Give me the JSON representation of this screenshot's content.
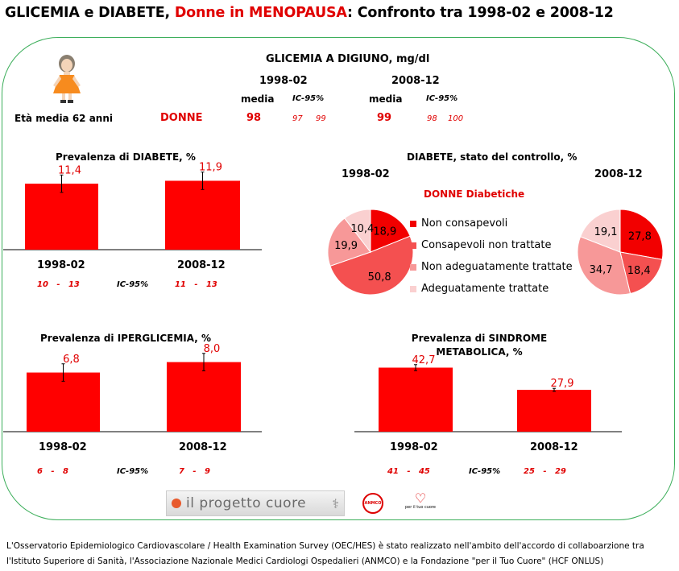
{
  "title": {
    "part1": "GLICEMIA e DIABETE, ",
    "part2": "Donne in MENOPAUSA",
    "part3": ": Confronto tra 1998-02 e 2008-12"
  },
  "glicemia": {
    "heading": "GLICEMIA A DIGIUNO, mg/dl",
    "period1": "1998-02",
    "period2": "2008-12",
    "media_label": "media",
    "ci_label": "IC-95%",
    "age_label": "Età media 62 anni",
    "group_label": "DONNE",
    "p1": {
      "media": "98",
      "ci_low": "97",
      "ci_high": "99"
    },
    "p2": {
      "media": "99",
      "ci_low": "98",
      "ci_high": "100"
    }
  },
  "colors": {
    "bar": "#ff0000",
    "accent": "#e00000",
    "frame": "#3cae5a"
  },
  "chart_data": [
    {
      "type": "bar",
      "title": "Prevalenza di DIABETE, %",
      "categories": [
        "1998-02",
        "2008-12"
      ],
      "values": [
        11.4,
        11.9
      ],
      "value_labels": [
        "11,4",
        "11,9"
      ],
      "errors": [
        1.5,
        1.5
      ],
      "ci_text": [
        "10   -   13",
        "11   -   13"
      ],
      "ci_label": "IC-95%",
      "ymax": 16
    },
    {
      "type": "pie",
      "title": "DIABETE, stato del controllo, %",
      "subtitle": "DONNE Diabetiche",
      "periods": [
        "1998-02",
        "2008-12"
      ],
      "legend": [
        "Non consapevoli",
        "Consapevoli non trattate",
        "Non adeguatamente trattate",
        "Adeguatamente trattate"
      ],
      "slice_colors": [
        "#f20000",
        "#f45050",
        "#f79898",
        "#fad0d0"
      ],
      "series": [
        {
          "name": "1998-02",
          "values": [
            18.9,
            50.8,
            19.9,
            10.4
          ],
          "labels": [
            "18,9",
            "50,8",
            "19,9",
            "10,4"
          ]
        },
        {
          "name": "2008-12",
          "values": [
            27.8,
            18.4,
            34.7,
            19.1
          ],
          "labels": [
            "27,8",
            "18,4",
            "34,7",
            "19,1"
          ]
        }
      ]
    },
    {
      "type": "bar",
      "title": "Prevalenza di IPERGLICEMIA, %",
      "categories": [
        "1998-02",
        "2008-12"
      ],
      "values": [
        6.8,
        8.0
      ],
      "value_labels": [
        "6,8",
        "8,0"
      ],
      "errors": [
        1,
        1
      ],
      "ci_text": [
        "6   -   8",
        "7   -   9"
      ],
      "ci_label": "IC-95%",
      "ymax": 10
    },
    {
      "type": "bar",
      "title": "Prevalenza di SINDROME",
      "title2": "METABOLICA, %",
      "categories": [
        "1998-02",
        "2008-12"
      ],
      "values": [
        42.7,
        27.9
      ],
      "value_labels": [
        "42,7",
        "27,9"
      ],
      "errors": [
        2,
        1
      ],
      "ci_text": [
        "41   -   45",
        "25   -   29"
      ],
      "ci_label": "IC-95%",
      "ymax": 58
    }
  ],
  "logos": {
    "progetto": "il progetto cuore",
    "anmco": "ANMCO",
    "tuo_cuore": "per il tuo cuore"
  },
  "footer": {
    "line1": "L'Osservatorio Epidemiologico Cardiovascolare / Health Examination Survey (OEC/HES) è stato realizzato nell'ambito dell'accordo di collaboarzione tra",
    "line2": "l'Istituto Superiore di Sanità, l'Associazione Nazionale Medici Cardiologi Ospedalieri (ANMCO) e la Fondazione \"per il Tuo Cuore\" (HCF ONLUS)"
  }
}
